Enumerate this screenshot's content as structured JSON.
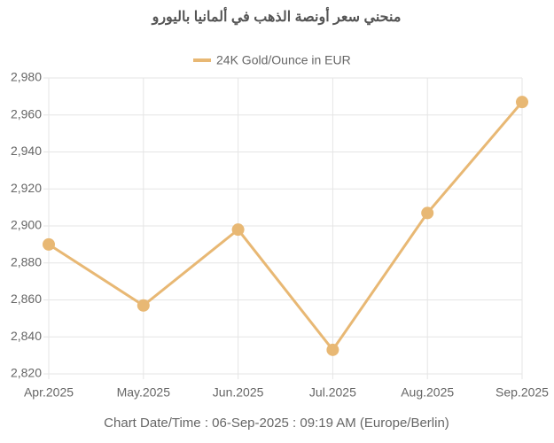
{
  "chart_data": {
    "type": "line",
    "title": "منحني سعر أونصة الذهب في ألمانيا باليورو",
    "categories": [
      "Apr.2025",
      "May.2025",
      "Jun.2025",
      "Jul.2025",
      "Aug.2025",
      "Sep.2025"
    ],
    "series": [
      {
        "name": "24K Gold/Ounce in EUR",
        "color": "#e8b874",
        "values": [
          2890,
          2857,
          2898,
          2833,
          2907,
          2967
        ]
      }
    ],
    "ylim": [
      2820,
      2980
    ],
    "yticks": [
      {
        "value": 2820,
        "label": "2,820"
      },
      {
        "value": 2840,
        "label": "2,840"
      },
      {
        "value": 2860,
        "label": "2,860"
      },
      {
        "value": 2880,
        "label": "2,880"
      },
      {
        "value": 2900,
        "label": "2,900"
      },
      {
        "value": 2920,
        "label": "2,920"
      },
      {
        "value": 2940,
        "label": "2,940"
      },
      {
        "value": 2960,
        "label": "2,960"
      },
      {
        "value": 2980,
        "label": "2,980"
      }
    ],
    "grid": true,
    "legend": "top",
    "caption": "Chart Date/Time : 06-Sep-2025 : 09:19 AM (Europe/Berlin)"
  }
}
